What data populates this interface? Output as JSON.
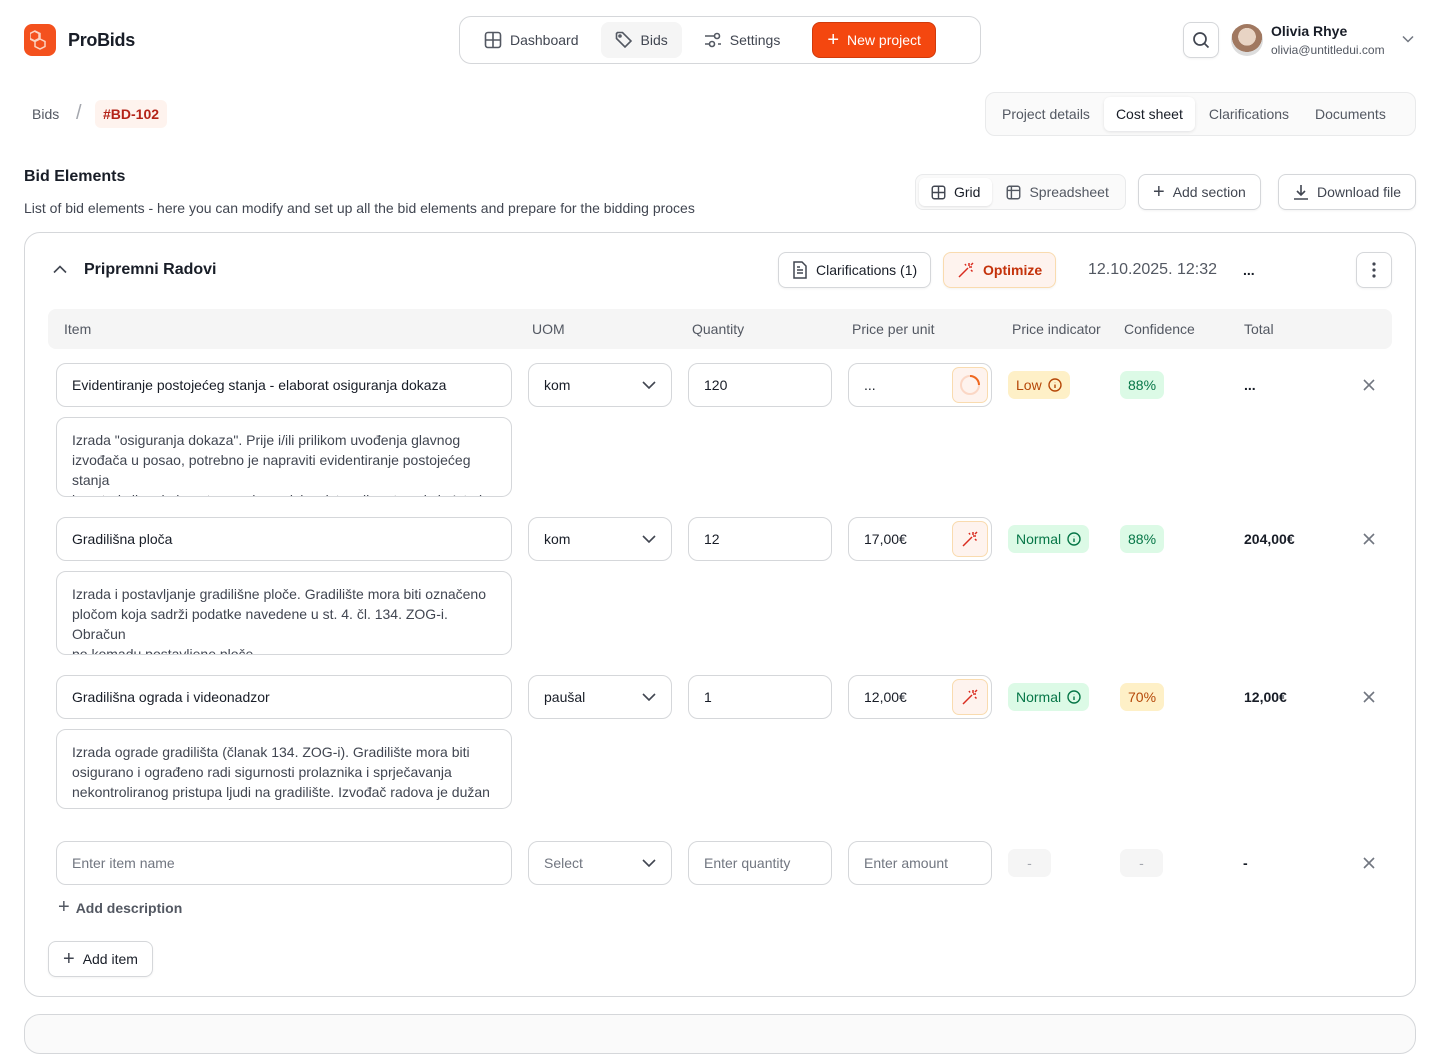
{
  "header": {
    "brand": "ProBids",
    "nav": [
      {
        "label": "Dashboard",
        "icon": "grid-icon"
      },
      {
        "label": "Bids",
        "icon": "tag-icon",
        "active": true
      },
      {
        "label": "Settings",
        "icon": "sliders-icon"
      }
    ],
    "new_project": "New project",
    "user": {
      "name": "Olivia Rhye",
      "email": "olivia@untitledui.com"
    }
  },
  "breadcrumb": {
    "root": "Bids",
    "separator": "/",
    "current": "#BD-102"
  },
  "tabs": [
    {
      "label": "Project details"
    },
    {
      "label": "Cost sheet",
      "active": true
    },
    {
      "label": "Clarifications"
    },
    {
      "label": "Documents"
    }
  ],
  "page": {
    "title": "Bid Elements",
    "subtitle": "List of bid elements -  here you can modify and set up all the bid elements and prepare for the bidding proces",
    "views": [
      "Grid",
      "Spreadsheet"
    ],
    "add_section": "Add section",
    "download": "Download file"
  },
  "section": {
    "name": "Pripremni Radovi",
    "clarifications": "Clarifications (1)",
    "optimize": "Optimize",
    "timestamp": "12.10.2025. 12:32",
    "ellipsis": "...",
    "columns": [
      "Item",
      "UOM",
      "Quantity",
      "Price per unit",
      "Price indicator",
      "Confidence",
      "Total"
    ],
    "rows": [
      {
        "name": "Evidentiranje postojećeg stanja - elaborat osiguranja dokaza",
        "uom": "kom",
        "quantity": "120",
        "price": "...",
        "loading": true,
        "indicator": "Low",
        "indicator_color": "#fef0c7",
        "confidence": "88%",
        "confidence_color": "#dcfae6",
        "total": "...",
        "description": [
          "Izrada \"osiguranja dokaza\". Prije i/ili prilikom uvođenja glavnog",
          "izvođača u posao, potrebno je napraviti evidentiranje postojećeg stanja",
          "konstrukcije, okolnog terena (parcele), pristupnih puteva i sl.. Isto je"
        ]
      },
      {
        "name": "Gradilišna ploča",
        "uom": "kom",
        "quantity": "12",
        "price": "17,00€",
        "indicator": "Normal",
        "indicator_color": "#dcfae6",
        "confidence": "88%",
        "confidence_color": "#dcfae6",
        "total": "204,00€",
        "description": [
          "Izrada i postavljanje gradilišne ploče. Gradilište mora biti označeno",
          "pločom koja sadrži podatke navedene u st. 4. čl. 134. ZOG-i. Obračun",
          "po komadu postavljene ploče."
        ]
      },
      {
        "name": "Gradilišna ograda i videonadzor",
        "uom": "paušal",
        "quantity": "1",
        "price": "12,00€",
        "indicator": "Normal",
        "indicator_color": "#dcfae6",
        "confidence": "70%",
        "confidence_color": "#fef0c7",
        "total": "12,00€",
        "description": [
          "Izrada ograde gradilišta (članak 134. ZOG-i). Gradilište mora biti",
          "osigurano i ograđeno radi sigurnosti prolaznika i sprječavanja",
          "nekontroliranog pristupa ljudi na gradilište. Izvođač radova je dužan"
        ]
      }
    ],
    "new_row": {
      "name_placeholder": "Enter item name",
      "uom_placeholder": "Select",
      "quantity_placeholder": "Enter quantity",
      "price_placeholder": "Enter amount",
      "indicator": "-",
      "confidence": "-",
      "total": "-",
      "add_description": "Add description"
    },
    "add_item": "Add item"
  },
  "colors": {
    "accent": "#f4470f",
    "brand_logo": "#f4511e",
    "success_text": "#067647",
    "warning_text": "#b54708"
  }
}
